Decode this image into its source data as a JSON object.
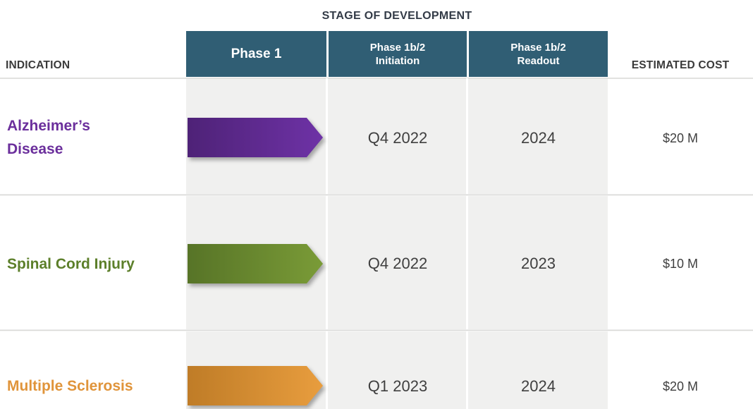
{
  "title": "STAGE OF DEVELOPMENT",
  "headers": {
    "indication": "INDICATION",
    "cost": "ESTIMATED COST",
    "stages": [
      {
        "line1": "Phase 1",
        "line2": ""
      },
      {
        "line1": "Phase 1b/2",
        "line2": "Initiation"
      },
      {
        "line1": "Phase 1b/2",
        "line2": "Readout"
      }
    ]
  },
  "rows": [
    {
      "indication": "Alzheimer’s Disease",
      "accent_color": "#6b2f9c",
      "arrow_icon": "phase1-arrow",
      "arrow_color_start": "#4e2277",
      "arrow_color_end": "#6e32a6",
      "initiation": "Q4 2022",
      "readout": "2024",
      "cost": "$20 M"
    },
    {
      "indication": "Spinal Cord Injury",
      "accent_color": "#5c7f2a",
      "arrow_icon": "phase1-arrow",
      "arrow_color_start": "#577427",
      "arrow_color_end": "#7a9b37",
      "initiation": "Q4 2022",
      "readout": "2023",
      "cost": "$10 M"
    },
    {
      "indication": "Multiple Sclerosis",
      "accent_color": "#e0943a",
      "arrow_icon": "phase1-arrow",
      "arrow_color_start": "#bf7c27",
      "arrow_color_end": "#e89d3e",
      "initiation": "Q1 2023",
      "readout": "2024",
      "cost": "$20 M"
    }
  ],
  "colors": {
    "stage_header_bg": "#305e74",
    "stage_header_text": "#ffffff",
    "stage_band_bg": "#f0f0ef",
    "body_text": "#3f3f3f",
    "label_text": "#3a3a3a",
    "title_text": "#333b47"
  },
  "chart_data": {
    "type": "table",
    "title": "STAGE OF DEVELOPMENT",
    "columns": [
      "INDICATION",
      "Phase 1",
      "Phase 1b/2 Initiation",
      "Phase 1b/2 Readout",
      "ESTIMATED COST"
    ],
    "rows": [
      [
        "Alzheimer's Disease",
        "Phase 1 in progress (arrow)",
        "Q4 2022",
        "2024",
        "$20 M"
      ],
      [
        "Spinal Cord Injury",
        "Phase 1 in progress (arrow)",
        "Q4 2022",
        "2023",
        "$10 M"
      ],
      [
        "Multiple Sclerosis",
        "Phase 1 in progress (arrow)",
        "Q1 2023",
        "2024",
        "$20 M"
      ]
    ],
    "legend_position": "none",
    "grid": false
  }
}
